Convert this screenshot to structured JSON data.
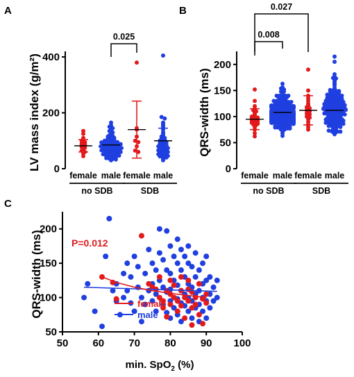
{
  "colors": {
    "female": "#e31a1c",
    "male": "#1f3fe0",
    "axis": "#000000"
  },
  "chart_data": [
    {
      "panel": "A",
      "type": "scatter",
      "ylabel": "LV mass index (g/m²)",
      "ylim": [
        0,
        420
      ],
      "yticks": [
        0,
        200,
        400
      ],
      "categories": [
        "female",
        "male",
        "female",
        "male"
      ],
      "groups": [
        {
          "label": "no SDB",
          "categories": [
            0,
            1
          ]
        },
        {
          "label": "SDB",
          "categories": [
            2,
            3
          ]
        }
      ],
      "series": [
        {
          "category": 0,
          "color_key": "female",
          "n": 16,
          "mean": 82,
          "sd": 22,
          "values": [
            135,
            125,
            110,
            100,
            95,
            90,
            88,
            85,
            82,
            78,
            75,
            70,
            65,
            60,
            55,
            45
          ]
        },
        {
          "category": 1,
          "color_key": "male",
          "n": 75,
          "mean": 85,
          "sd": 28,
          "values": [
            165,
            155,
            150,
            145,
            140,
            135,
            130,
            125,
            120,
            118,
            115,
            112,
            110,
            108,
            105,
            102,
            100,
            100,
            98,
            96,
            95,
            94,
            92,
            90,
            90,
            88,
            88,
            86,
            85,
            84,
            83,
            82,
            80,
            80,
            78,
            78,
            76,
            75,
            74,
            72,
            72,
            70,
            70,
            68,
            67,
            66,
            65,
            64,
            62,
            60,
            60,
            58,
            57,
            55,
            54,
            52,
            50,
            50,
            48,
            47,
            45,
            44,
            42,
            40,
            38,
            36,
            35,
            33,
            30,
            48,
            58,
            66,
            74,
            86,
            92
          ]
        },
        {
          "category": 2,
          "color_key": "female",
          "n": 9,
          "mean": 140,
          "sd": 102,
          "values": [
            380,
            145,
            140,
            115,
            100,
            95,
            80,
            65,
            60
          ]
        },
        {
          "category": 3,
          "color_key": "male",
          "n": 47,
          "mean": 100,
          "sd": 45,
          "values": [
            405,
            185,
            180,
            165,
            160,
            155,
            150,
            140,
            130,
            125,
            120,
            115,
            110,
            108,
            105,
            100,
            98,
            95,
            92,
            90,
            88,
            86,
            84,
            82,
            80,
            78,
            76,
            74,
            72,
            70,
            68,
            66,
            64,
            62,
            60,
            58,
            56,
            54,
            52,
            50,
            48,
            46,
            44,
            42,
            40,
            35,
            30
          ]
        }
      ],
      "comparisons": [
        {
          "from": 1,
          "to": 2,
          "label": "0.025"
        }
      ]
    },
    {
      "panel": "B",
      "type": "scatter",
      "ylabel": "QRS-width (ms)",
      "ylim": [
        0,
        225
      ],
      "yticks": [
        0,
        50,
        100,
        150,
        200
      ],
      "categories": [
        "female",
        "male",
        "female",
        "male"
      ],
      "groups": [
        {
          "label": "no SDB",
          "categories": [
            0,
            1
          ]
        },
        {
          "label": "SDB",
          "categories": [
            2,
            3
          ]
        }
      ],
      "series": [
        {
          "category": 0,
          "color_key": "female",
          "n": 30,
          "mean": 95,
          "sd": 20,
          "values": [
            152,
            130,
            120,
            115,
            112,
            110,
            108,
            105,
            102,
            100,
            100,
            98,
            97,
            96,
            95,
            94,
            93,
            92,
            91,
            90,
            89,
            88,
            87,
            86,
            85,
            84,
            80,
            75,
            68,
            62
          ]
        },
        {
          "category": 1,
          "color_key": "male",
          "n": 200,
          "mean": 108,
          "sd": 20,
          "values": []
        },
        {
          "category": 2,
          "color_key": "female",
          "n": 24,
          "mean": 112,
          "sd": 28,
          "values": [
            190,
            150,
            140,
            135,
            130,
            125,
            122,
            120,
            118,
            116,
            114,
            112,
            110,
            108,
            106,
            104,
            102,
            100,
            98,
            95,
            90,
            85,
            80,
            75
          ]
        },
        {
          "category": 3,
          "color_key": "male",
          "n": 170,
          "mean": 112,
          "sd": 28,
          "values": []
        }
      ],
      "comparisons": [
        {
          "from": 0,
          "to": 1,
          "label": "0.008"
        },
        {
          "from": 0,
          "to": 2,
          "label": "0.027"
        }
      ]
    },
    {
      "panel": "C",
      "type": "scatter",
      "xlabel": "min. SpO2 (%)",
      "ylabel": "QRS-width (ms)",
      "xlim": [
        50,
        100
      ],
      "ylim": [
        50,
        225
      ],
      "xticks": [
        50,
        60,
        70,
        80,
        90,
        100
      ],
      "yticks": [
        50,
        100,
        150,
        200
      ],
      "annotation": "P=0.012",
      "series": [
        {
          "name": "female",
          "color_key": "female",
          "points": [
            [
              61,
              130
            ],
            [
              64,
              122
            ],
            [
              65,
              98
            ],
            [
              72,
              190
            ],
            [
              74,
              120
            ],
            [
              75,
              115
            ],
            [
              76,
              112
            ],
            [
              77,
              100
            ],
            [
              77,
              130
            ],
            [
              78,
              95
            ],
            [
              78,
              85
            ],
            [
              79,
              110
            ],
            [
              79,
              72
            ],
            [
              80,
              125
            ],
            [
              80,
              105
            ],
            [
              80,
              90
            ],
            [
              81,
              118
            ],
            [
              81,
              100
            ],
            [
              82,
              95
            ],
            [
              82,
              80
            ],
            [
              83,
              130
            ],
            [
              83,
              110
            ],
            [
              83,
              88
            ],
            [
              84,
              100
            ],
            [
              84,
              70
            ],
            [
              85,
              125
            ],
            [
              85,
              112
            ],
            [
              85,
              95
            ],
            [
              86,
              108
            ],
            [
              86,
              85
            ],
            [
              86,
              60
            ],
            [
              87,
              100
            ],
            [
              87,
              90
            ],
            [
              88,
              120
            ],
            [
              88,
              75
            ],
            [
              89,
              98
            ],
            [
              89,
              62
            ],
            [
              90,
              92
            ],
            [
              90,
              105
            ]
          ],
          "trend": [
            [
              61,
              130
            ],
            [
              65,
              122
            ],
            [
              70,
              115
            ],
            [
              75,
              110
            ],
            [
              80,
              106
            ],
            [
              85,
              103
            ],
            [
              90,
              100
            ]
          ]
        },
        {
          "name": "male",
          "color_key": "male",
          "points": [
            [
              56,
              100
            ],
            [
              57,
              120
            ],
            [
              59,
              80
            ],
            [
              61,
              58
            ],
            [
              62,
              160
            ],
            [
              63,
              215
            ],
            [
              64,
              110
            ],
            [
              65,
              95
            ],
            [
              65,
              120
            ],
            [
              66,
              75
            ],
            [
              67,
              135
            ],
            [
              67,
              100
            ],
            [
              68,
              150
            ],
            [
              68,
              110
            ],
            [
              69,
              92
            ],
            [
              69,
              130
            ],
            [
              70,
              160
            ],
            [
              70,
              80
            ],
            [
              71,
              145
            ],
            [
              71,
              115
            ],
            [
              72,
              100
            ],
            [
              72,
              65
            ],
            [
              73,
              135
            ],
            [
              73,
              90
            ],
            [
              74,
              170
            ],
            [
              74,
              110
            ],
            [
              75,
              150
            ],
            [
              75,
              120
            ],
            [
              75,
              95
            ],
            [
              76,
              140
            ],
            [
              76,
              105
            ],
            [
              76,
              80
            ],
            [
              77,
              200
            ],
            [
              77,
              165
            ],
            [
              77,
              125
            ],
            [
              78,
              155
            ],
            [
              78,
              115
            ],
            [
              78,
              90
            ],
            [
              79,
              197
            ],
            [
              79,
              140
            ],
            [
              79,
              108
            ],
            [
              79,
              78
            ],
            [
              80,
              175
            ],
            [
              80,
              135
            ],
            [
              80,
              112
            ],
            [
              80,
              95
            ],
            [
              80,
              70
            ],
            [
              81,
              160
            ],
            [
              81,
              125
            ],
            [
              81,
              100
            ],
            [
              81,
              85
            ],
            [
              82,
              185
            ],
            [
              82,
              150
            ],
            [
              82,
              118
            ],
            [
              82,
              98
            ],
            [
              82,
              75
            ],
            [
              83,
              170
            ],
            [
              83,
              140
            ],
            [
              83,
              110
            ],
            [
              83,
              92
            ],
            [
              83,
              65
            ],
            [
              84,
              160
            ],
            [
              84,
              130
            ],
            [
              84,
              105
            ],
            [
              84,
              88
            ],
            [
              85,
              175
            ],
            [
              85,
              150
            ],
            [
              85,
              120
            ],
            [
              85,
              100
            ],
            [
              85,
              80
            ],
            [
              86,
              145
            ],
            [
              86,
              115
            ],
            [
              86,
              95
            ],
            [
              86,
              70
            ],
            [
              87,
              165
            ],
            [
              87,
              130
            ],
            [
              87,
              105
            ],
            [
              87,
              85
            ],
            [
              88,
              140
            ],
            [
              88,
              110
            ],
            [
              88,
              90
            ],
            [
              88,
              65
            ],
            [
              89,
              150
            ],
            [
              89,
              120
            ],
            [
              89,
              100
            ],
            [
              89,
              80
            ],
            [
              90,
              160
            ],
            [
              90,
              125
            ],
            [
              90,
              95
            ],
            [
              90,
              70
            ],
            [
              91,
              130
            ],
            [
              91,
              105
            ],
            [
              91,
              85
            ],
            [
              92,
              115
            ],
            [
              92,
              95
            ],
            [
              93,
              125
            ],
            [
              93,
              100
            ]
          ],
          "trend": [
            [
              56,
              115
            ],
            [
              93,
              109
            ]
          ]
        }
      ]
    }
  ]
}
